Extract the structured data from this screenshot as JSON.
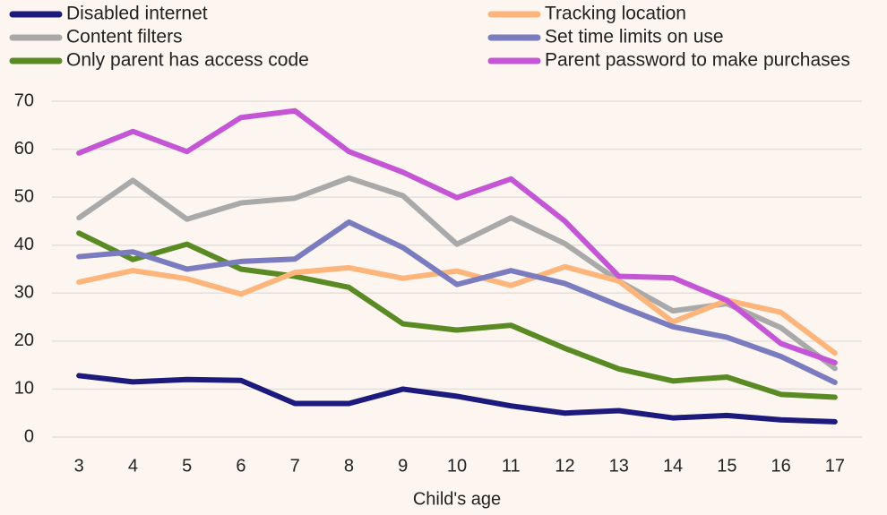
{
  "chart_data": {
    "type": "line",
    "x_label": "Child's age",
    "x": [
      3,
      4,
      5,
      6,
      7,
      8,
      9,
      10,
      11,
      12,
      13,
      14,
      15,
      16,
      17
    ],
    "xlim": [
      2.5,
      17.5
    ],
    "xticks": [
      3,
      4,
      5,
      6,
      7,
      8,
      9,
      10,
      11,
      12,
      13,
      14,
      15,
      16,
      17
    ],
    "ylim": [
      0,
      70
    ],
    "yticks": [
      0,
      10,
      20,
      30,
      40,
      50,
      60,
      70
    ],
    "grid": true,
    "series": [
      {
        "name": "Disabled internet",
        "color": "#1c1a7c",
        "values": [
          12.8,
          11.5,
          12,
          11.8,
          7,
          7,
          10,
          8.5,
          6.5,
          5,
          5.5,
          4,
          4.5,
          3.6,
          3.2
        ]
      },
      {
        "name": "Content filters",
        "color": "#a9a9a9",
        "values": [
          45.7,
          53.5,
          45.4,
          48.8,
          49.8,
          54,
          50.3,
          40.2,
          45.7,
          40.3,
          32.5,
          26.3,
          27.8,
          22.8,
          14.3
        ]
      },
      {
        "name": "Only parent has access code",
        "color": "#5a8a23",
        "values": [
          42.5,
          37,
          40.2,
          35,
          33.5,
          31.2,
          23.6,
          22.3,
          23.3,
          18.5,
          14.2,
          11.7,
          12.5,
          8.9,
          8.3
        ]
      },
      {
        "name": "Tracking location",
        "color": "#fdb57b",
        "values": [
          32.3,
          34.7,
          33,
          29.8,
          34.3,
          35.3,
          33.1,
          34.6,
          31.6,
          35.5,
          32.5,
          24,
          28.5,
          26,
          17.5
        ]
      },
      {
        "name": "Set time limits on use",
        "color": "#7b7bbf",
        "values": [
          37.6,
          38.6,
          35,
          36.6,
          37.1,
          44.8,
          39.5,
          31.8,
          34.7,
          32,
          27.4,
          23,
          20.8,
          16.8,
          11.4
        ]
      },
      {
        "name": "Parent password to make purchases",
        "color": "#c456d6",
        "values": [
          59.2,
          63.7,
          59.5,
          66.6,
          68,
          59.5,
          55.2,
          49.9,
          53.8,
          45,
          33.5,
          33.2,
          28.5,
          19.5,
          15.5
        ]
      }
    ]
  }
}
